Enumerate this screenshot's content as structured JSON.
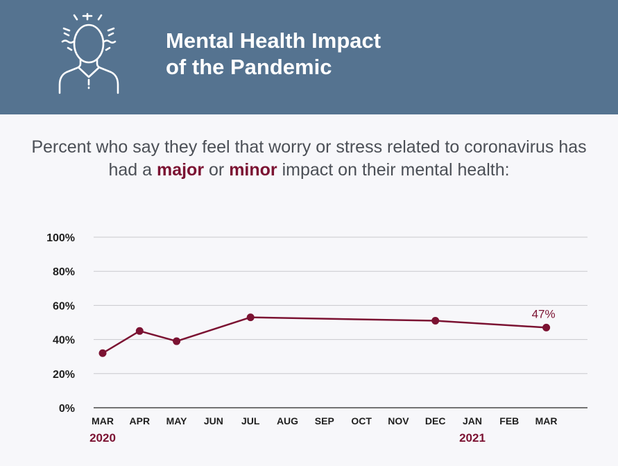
{
  "header": {
    "title_line1": "Mental Health Impact",
    "title_line2": "of the Pandemic"
  },
  "subtitle": {
    "part1": "Percent who say they feel that worry or stress related to coronavirus has had a ",
    "major": "major",
    "part2": " or ",
    "minor": "minor",
    "part3": " impact on their mental health:"
  },
  "colors": {
    "header_bg": "#557390",
    "accent": "#7b1232",
    "text": "#4b4f56",
    "grid": "#c8c8cc"
  },
  "icons": {
    "header": "stressed-person-icon"
  },
  "chart_data": {
    "type": "line",
    "categories": [
      "MAR",
      "APR",
      "MAY",
      "JUN",
      "JUL",
      "AUG",
      "SEP",
      "OCT",
      "NOV",
      "DEC",
      "JAN",
      "FEB",
      "MAR"
    ],
    "year_labels": [
      {
        "label": "2020",
        "category_index": 0
      },
      {
        "label": "2021",
        "category_index": 10
      }
    ],
    "series": [
      {
        "points": [
          {
            "category_index": 0,
            "value": 32
          },
          {
            "category_index": 1,
            "value": 45
          },
          {
            "category_index": 2,
            "value": 39
          },
          {
            "category_index": 4,
            "value": 53
          },
          {
            "category_index": 9,
            "value": 51
          },
          {
            "category_index": 12,
            "value": 47
          }
        ]
      }
    ],
    "data_labels": [
      {
        "category_index": 12,
        "text": "47%"
      }
    ],
    "y_ticks": [
      {
        "value": 0,
        "label": "0%"
      },
      {
        "value": 20,
        "label": "20%"
      },
      {
        "value": 40,
        "label": "40%"
      },
      {
        "value": 60,
        "label": "60%"
      },
      {
        "value": 80,
        "label": "80%"
      },
      {
        "value": 100,
        "label": "100%"
      }
    ],
    "ylim": [
      0,
      100
    ],
    "grid": true,
    "legend": "none"
  }
}
